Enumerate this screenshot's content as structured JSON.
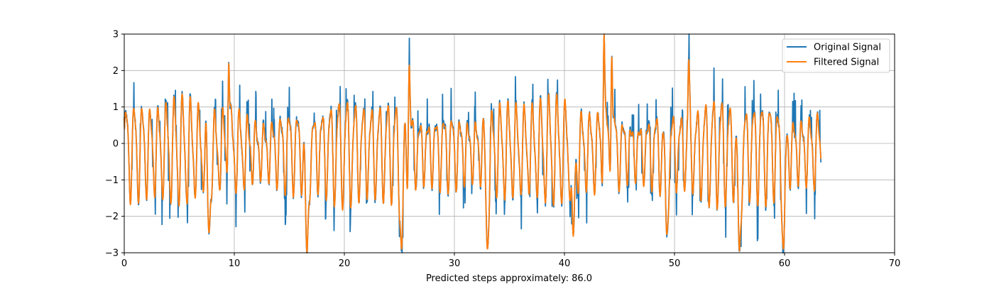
{
  "chart_data": {
    "type": "line",
    "title": "",
    "xlabel": "Predicted steps approximately: 86.0",
    "ylabel": "",
    "xlim": [
      0,
      70
    ],
    "ylim": [
      -3,
      3
    ],
    "xticks": [
      0,
      10,
      20,
      30,
      40,
      50,
      60,
      70
    ],
    "yticks": [
      -3,
      -2,
      -1,
      0,
      1,
      2,
      3
    ],
    "xtick_labels": [
      "0",
      "10",
      "20",
      "30",
      "40",
      "50",
      "60",
      "70"
    ],
    "ytick_labels": [
      "−3",
      "−2",
      "−1",
      "0",
      "1",
      "2",
      "3"
    ],
    "grid": true,
    "legend_position": "top-right",
    "series": [
      {
        "name": "Original Signal",
        "color": "#1f77b4"
      },
      {
        "name": "Filtered Signal",
        "color": "#ff7f0e"
      }
    ],
    "x_range_data": [
      0,
      63.3
    ],
    "approx_oscillation_period": 0.74,
    "notes_deep_dips": [
      {
        "x": 7.7,
        "y": -2.45
      },
      {
        "x": 16.6,
        "y": -3.0
      },
      {
        "x": 25.2,
        "y": -2.9
      },
      {
        "x": 33.0,
        "y": -2.9
      },
      {
        "x": 40.8,
        "y": -2.55
      },
      {
        "x": 49.3,
        "y": -2.5
      },
      {
        "x": 55.9,
        "y": -2.95
      },
      {
        "x": 59.9,
        "y": -2.9
      }
    ],
    "notes_peaks": [
      {
        "x": 9.5,
        "y": 2.2
      },
      {
        "x": 25.9,
        "y": 2.15
      },
      {
        "x": 43.6,
        "y": 3.0
      },
      {
        "x": 44.3,
        "y": 2.4
      },
      {
        "x": 51.3,
        "y": 2.3
      }
    ]
  }
}
